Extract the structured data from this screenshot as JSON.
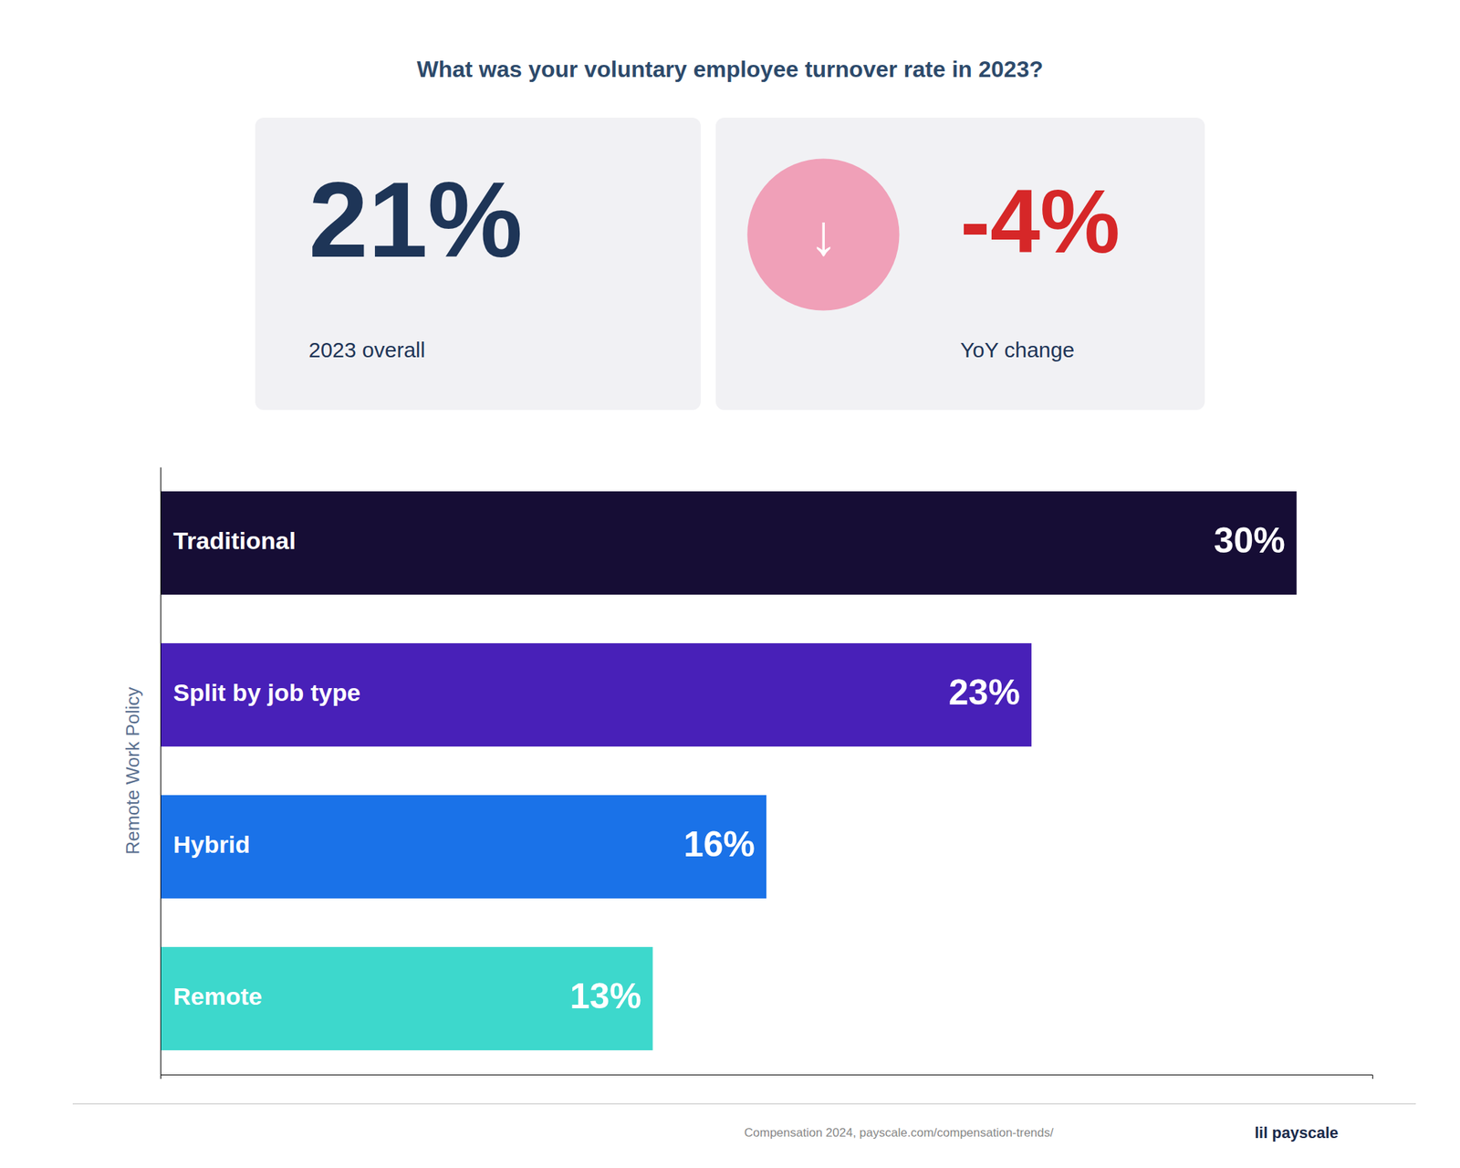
{
  "chart_data": {
    "type": "bar",
    "orientation": "horizontal",
    "title": "What was your voluntary employee turnover rate in 2023?",
    "categories": [
      "Traditional",
      "Split by job type",
      "Hybrid",
      "Remote"
    ],
    "values": [
      30,
      23,
      16,
      13
    ],
    "value_labels": [
      "30%",
      "23%",
      "16%",
      "13%"
    ],
    "data_labels": true,
    "colors": [
      "#160d35",
      "#4820b8",
      "#1a72e8",
      "#3dd8cc"
    ],
    "xlim": [
      0,
      32
    ],
    "tick_labels": false,
    "ylabel": "Remote Work Policy",
    "annotations": [
      "21%",
      "2023 overall",
      "↓",
      "-4%",
      "YoY change",
      "Compensation 2024, payscale.com/compensation-trends/",
      "lil payscale"
    ]
  }
}
